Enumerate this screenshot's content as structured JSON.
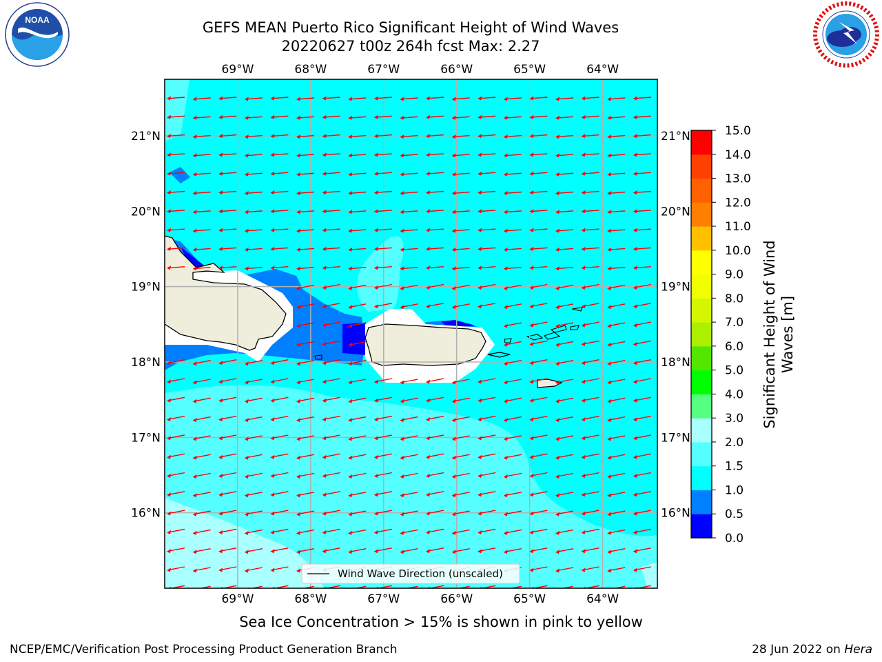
{
  "title_line1": "GEFS MEAN Puerto Rico Significant Height of Wind Waves",
  "title_line2": "20220627 t00z 264h fcst   Max: 2.27",
  "logos": {
    "noaa_text": "NOAA",
    "noaa_ring_text": "NATIONAL OCEANIC AND ATMOSPHERIC ADMINISTRATION · U.S. DEPARTMENT OF COMMERCE",
    "nws_ring_text": "NATIONAL WEATHER SERVICE"
  },
  "map": {
    "lon_labels": [
      "69°W",
      "68°W",
      "67°W",
      "66°W",
      "65°W",
      "64°W"
    ],
    "lat_labels": [
      "21°N",
      "20°N",
      "19°N",
      "18°N",
      "17°N",
      "16°N"
    ],
    "lon_range": [
      -70.0,
      -63.25
    ],
    "lat_range": [
      15.0,
      21.75
    ],
    "legend_label": "Wind Wave Direction (unscaled)",
    "arrow_color": "#ff0000",
    "land_color": "#efeedc",
    "gridline_color": "#b0b0b0",
    "wave_direction": "toward west-southwest"
  },
  "colorbar": {
    "label": "Significant Height of Wind Waves [m]",
    "ticks": [
      "15.0",
      "14.0",
      "13.0",
      "12.0",
      "11.0",
      "10.0",
      "9.0",
      "8.0",
      "7.0",
      "6.0",
      "5.0",
      "4.0",
      "3.0",
      "2.0",
      "1.5",
      "1.0",
      "0.5",
      "0.0"
    ],
    "bins": [
      {
        "from": 0.0,
        "to": 0.5,
        "color": "#0000ff"
      },
      {
        "from": 0.5,
        "to": 1.0,
        "color": "#0080ff"
      },
      {
        "from": 1.0,
        "to": 1.5,
        "color": "#00ffff"
      },
      {
        "from": 1.5,
        "to": 2.0,
        "color": "#55ffff"
      },
      {
        "from": 2.0,
        "to": 3.0,
        "color": "#aaffff"
      },
      {
        "from": 3.0,
        "to": 4.0,
        "color": "#55ff80"
      },
      {
        "from": 4.0,
        "to": 5.0,
        "color": "#00ff00"
      },
      {
        "from": 5.0,
        "to": 6.0,
        "color": "#55e600"
      },
      {
        "from": 6.0,
        "to": 7.0,
        "color": "#aaf000"
      },
      {
        "from": 7.0,
        "to": 8.0,
        "color": "#d4f700"
      },
      {
        "from": 8.0,
        "to": 9.0,
        "color": "#f0ff00"
      },
      {
        "from": 9.0,
        "to": 10.0,
        "color": "#ffff00"
      },
      {
        "from": 10.0,
        "to": 11.0,
        "color": "#ffc000"
      },
      {
        "from": 11.0,
        "to": 12.0,
        "color": "#ff8000"
      },
      {
        "from": 12.0,
        "to": 13.0,
        "color": "#ff6000"
      },
      {
        "from": 13.0,
        "to": 14.0,
        "color": "#ff4000"
      },
      {
        "from": 14.0,
        "to": 15.0,
        "color": "#ff0000"
      }
    ]
  },
  "sea_ice_note": "Sea Ice Concentration > 15% is shown in pink to yellow",
  "footer_left": "NCEP/EMC/Verification Post Processing Product Generation Branch",
  "footer_right_prefix": "28 Jun 2022 on ",
  "footer_right_host": "Hera"
}
